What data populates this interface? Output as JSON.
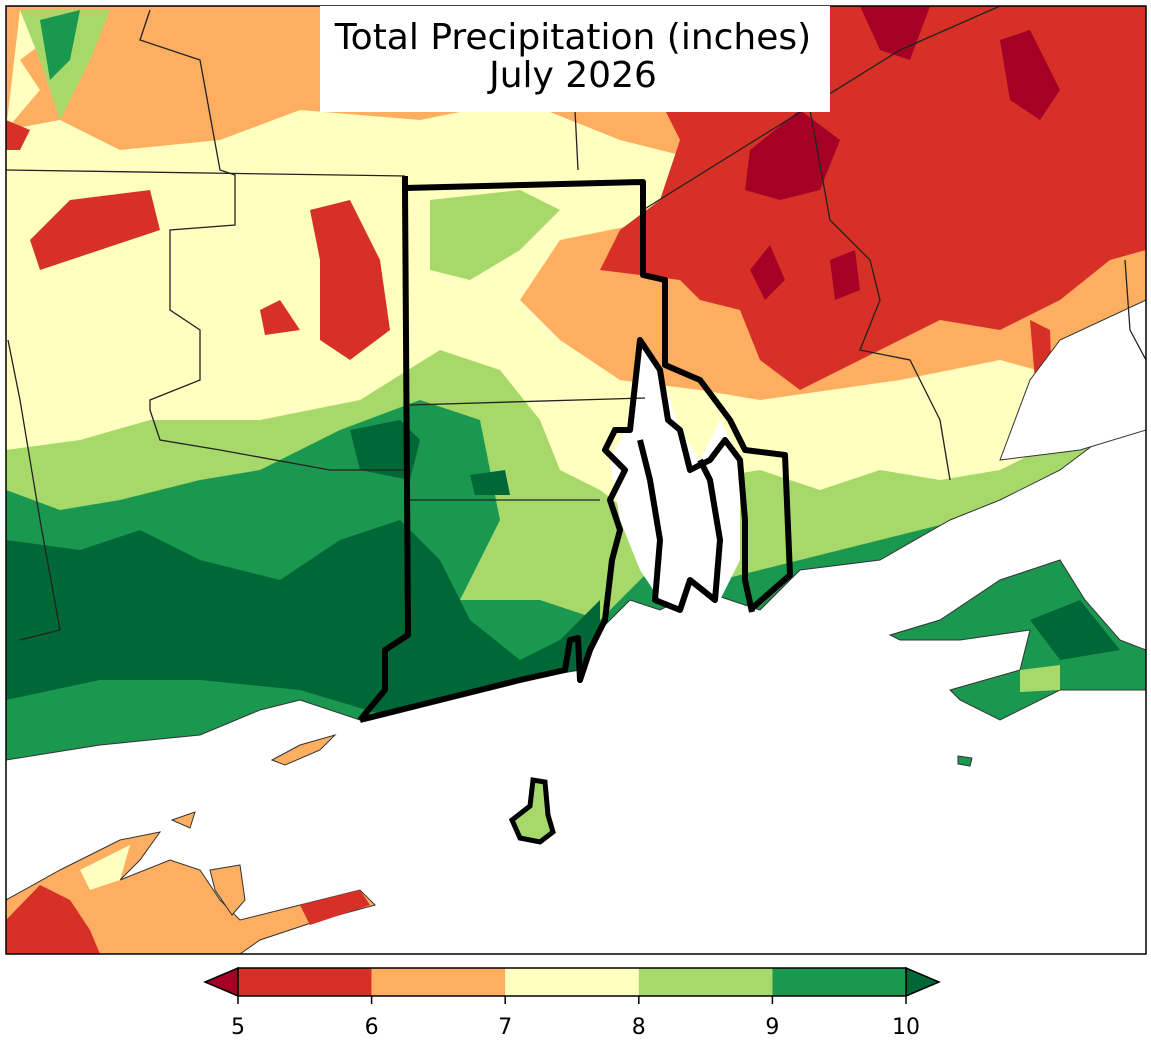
{
  "title": [
    "Total Precipitation (inches)",
    "July 2026"
  ],
  "colorbar": {
    "ticks": [
      5,
      6,
      7,
      8,
      9,
      10
    ],
    "colors": [
      "#d73027",
      "#fdae61",
      "#ffffbf",
      "#a6d96a",
      "#1a9850"
    ],
    "under_color": "#a50026",
    "over_color": "#006837"
  }
}
